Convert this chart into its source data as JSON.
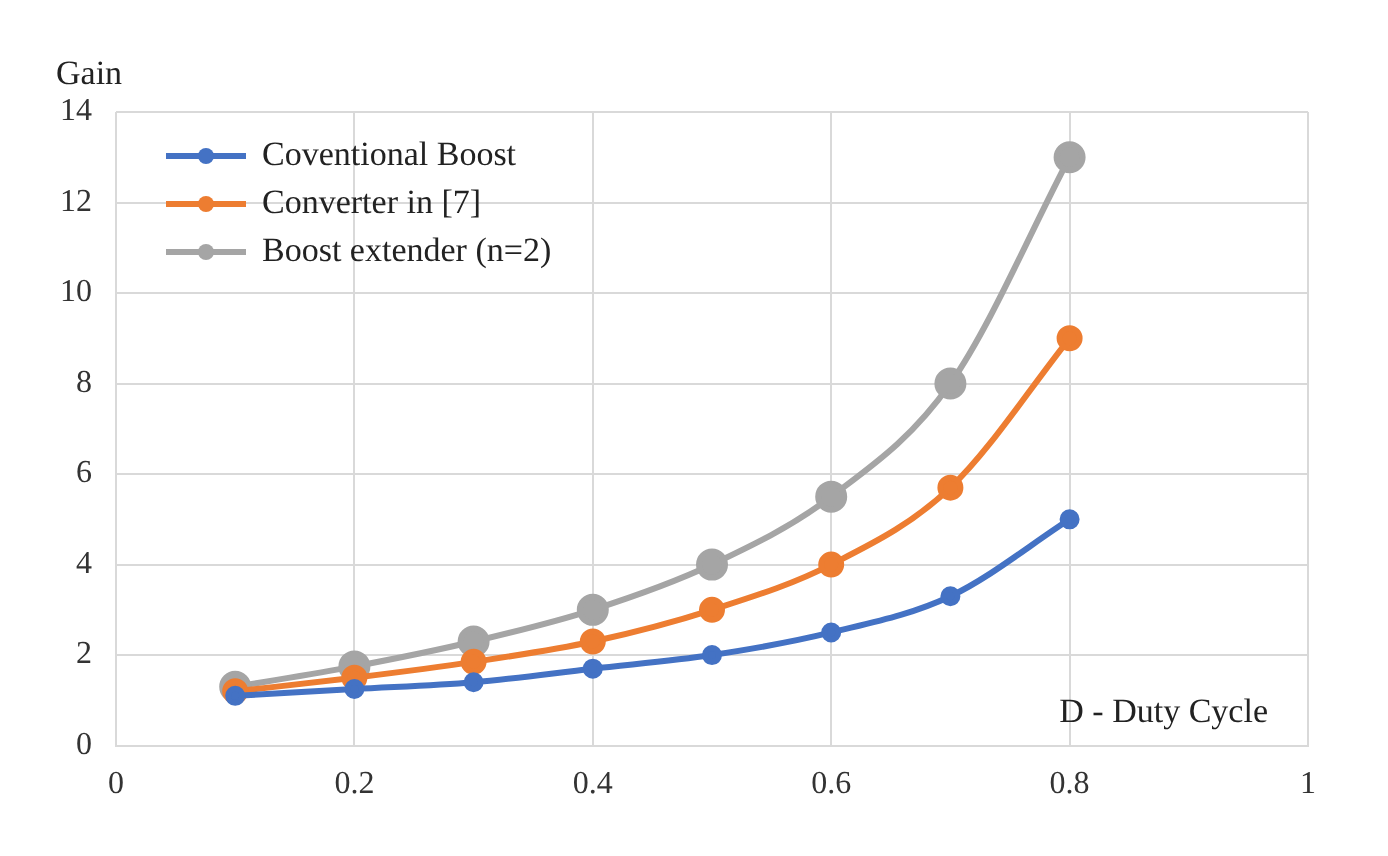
{
  "chart_data": {
    "type": "line",
    "xlabel": "D - Duty Cycle",
    "ylabel": "Gain",
    "x": [
      0.1,
      0.2,
      0.3,
      0.4,
      0.5,
      0.6,
      0.7,
      0.8
    ],
    "series": [
      {
        "name": "Coventional Boost",
        "color": "#4472c4",
        "values": [
          1.1,
          1.25,
          1.4,
          1.7,
          2,
          2.5,
          3.3,
          5
        ]
      },
      {
        "name": "Converter in [7]",
        "color": "#ed7d31",
        "values": [
          1.2,
          1.5,
          1.85,
          2.3,
          3,
          4,
          5.7,
          9
        ]
      },
      {
        "name": "Boost extender (n=2)",
        "color": "#a5a5a5",
        "values": [
          1.3,
          1.75,
          2.3,
          3,
          4,
          5.5,
          8,
          13
        ]
      }
    ],
    "xlim": [
      0,
      1
    ],
    "xticks": [
      0,
      0.2,
      0.4,
      0.6,
      0.8,
      1
    ],
    "ylim": [
      0,
      14
    ],
    "yticks": [
      0,
      2,
      4,
      6,
      8,
      10,
      12,
      14
    ],
    "grid": true,
    "legend": "top left",
    "marker": "circle",
    "line_style": "solid"
  }
}
